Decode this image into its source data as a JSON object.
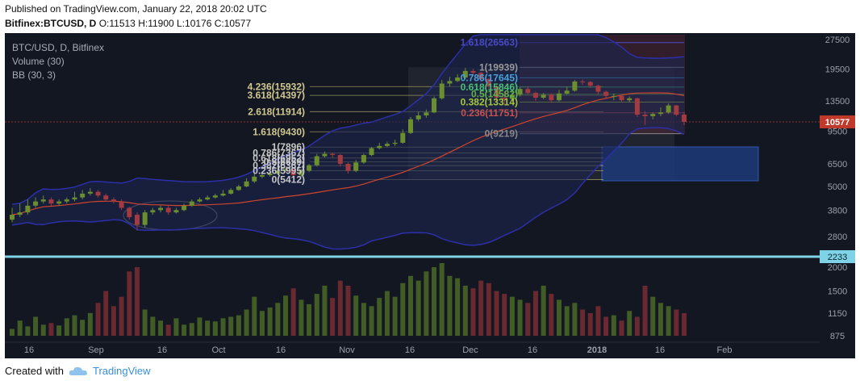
{
  "header": {
    "published": "Published on TradingView.com, January 22, 2018 20:02 UTC",
    "symbol": "Bitfinex:BTCUSD, D",
    "ohlc_prefix_o": "O:",
    "o": "11513",
    "ohlc_prefix_h": "H:",
    "h": "11900",
    "ohlc_prefix_l": "L:",
    "l": "10176",
    "ohlc_prefix_c": "C:",
    "c": "10577"
  },
  "legend": {
    "line1": "BTC/USD, D, Bitfinex",
    "line2": "Volume (30)",
    "line3": "BB (30, 3)"
  },
  "footer": {
    "created_with": "Created with",
    "brand": "TradingView"
  },
  "colors": {
    "background": "#131722",
    "up": "#6b8e2f",
    "down": "#a33a3f",
    "bb_band": "#2d2fa8",
    "ma": "#d0452c",
    "hline": "#7fd3e6",
    "last_price": "#c0392b"
  },
  "chart_data": {
    "type": "candlestick",
    "scale": "log",
    "price_axis_ticks": [
      "27500",
      "19500",
      "13500",
      "9500",
      "6500",
      "5000",
      "3800",
      "2800",
      "2000",
      "1500",
      "1150",
      "875"
    ],
    "time_axis_ticks": [
      "16",
      "Sep",
      "16",
      "Oct",
      "16",
      "Nov",
      "16",
      "Dec",
      "16",
      "2018",
      "16",
      "Feb"
    ],
    "last_price": "10577",
    "horizontal_line": "2233",
    "fib_extension_left": [
      "4.236(15932)",
      "3.618(14397)",
      "2.618(11914)",
      "1.618(9430)",
      "1(7896)",
      "0.786(7367)",
      "0.618(6952)",
      "0.5(6659)",
      "0.382(6367)",
      "0.236(5995)",
      "0(5412)"
    ],
    "fib_retracement_right": [
      "1.618(26563)",
      "1(19939)",
      "0.786(17645)",
      "0.618(15846)",
      "0.5(14582)",
      "0.382(13314)",
      "0.236(11751)",
      "0(9219)"
    ],
    "candles_approx": [
      [
        3600,
        3400,
        3900,
        3300
      ],
      [
        3700,
        3600,
        4100,
        3500
      ],
      [
        4000,
        3700,
        4300,
        3600
      ],
      [
        4200,
        4000,
        4400,
        3900
      ],
      [
        4300,
        4200,
        4500,
        4100
      ],
      [
        4100,
        4300,
        4400,
        4000
      ],
      [
        4200,
        4100,
        4300,
        4000
      ],
      [
        4300,
        4200,
        4400,
        4100
      ],
      [
        4400,
        4300,
        4700,
        4200
      ],
      [
        4600,
        4400,
        4800,
        4300
      ],
      [
        4700,
        4600,
        4900,
        4500
      ],
      [
        4500,
        4700,
        4800,
        4400
      ],
      [
        4300,
        4500,
        4600,
        4200
      ],
      [
        4200,
        4300,
        4400,
        4100
      ],
      [
        3900,
        4200,
        4300,
        3800
      ],
      [
        3500,
        3900,
        3950,
        3400
      ],
      [
        3200,
        3600,
        3700,
        3000
      ],
      [
        3700,
        3200,
        3800,
        3100
      ],
      [
        3800,
        3700,
        3900,
        3600
      ],
      [
        3900,
        3800,
        4000,
        3700
      ],
      [
        3700,
        3900,
        4000,
        3600
      ],
      [
        3800,
        3700,
        3900,
        3650
      ],
      [
        4000,
        3800,
        4100,
        3750
      ],
      [
        4200,
        4000,
        4300,
        3950
      ],
      [
        4300,
        4200,
        4400,
        4150
      ],
      [
        4400,
        4300,
        4500,
        4250
      ],
      [
        4500,
        4400,
        4600,
        4350
      ],
      [
        4600,
        4500,
        4800,
        4450
      ],
      [
        4800,
        4600,
        4900,
        4550
      ],
      [
        5000,
        4800,
        5100,
        4750
      ],
      [
        5300,
        5000,
        5500,
        4950
      ],
      [
        5600,
        5300,
        5800,
        5200
      ],
      [
        5700,
        5600,
        5900,
        5500
      ],
      [
        5800,
        5700,
        6000,
        5600
      ],
      [
        6000,
        5800,
        6200,
        5700
      ],
      [
        6100,
        6000,
        6200,
        5900
      ],
      [
        5700,
        6100,
        6200,
        5600
      ],
      [
        6000,
        5700,
        6100,
        5600
      ],
      [
        6400,
        6000,
        6500,
        5900
      ],
      [
        7100,
        6400,
        7300,
        6300
      ],
      [
        7300,
        7100,
        7500,
        7000
      ],
      [
        7200,
        7300,
        7400,
        7000
      ],
      [
        6500,
        7200,
        7300,
        6300
      ],
      [
        6000,
        6500,
        6600,
        5800
      ],
      [
        6600,
        6000,
        6800,
        5900
      ],
      [
        7200,
        6600,
        7300,
        6500
      ],
      [
        7800,
        7200,
        7900,
        7100
      ],
      [
        8000,
        7800,
        8300,
        7700
      ],
      [
        8200,
        8000,
        8400,
        7900
      ],
      [
        8300,
        8200,
        8600,
        8000
      ],
      [
        9300,
        8300,
        9700,
        8200
      ],
      [
        10900,
        9300,
        11200,
        9200
      ],
      [
        11400,
        10900,
        11900,
        10700
      ],
      [
        11800,
        11400,
        12200,
        11100
      ],
      [
        13900,
        11800,
        14200,
        11700
      ],
      [
        16500,
        13900,
        17200,
        13700
      ],
      [
        17000,
        16500,
        17800,
        15900
      ],
      [
        17700,
        17000,
        18400,
        16800
      ],
      [
        19100,
        17700,
        19800,
        17400
      ],
      [
        18700,
        19100,
        19600,
        18000
      ],
      [
        17400,
        18700,
        18900,
        16800
      ],
      [
        16000,
        17400,
        17600,
        15500
      ],
      [
        14000,
        16000,
        16200,
        13500
      ],
      [
        13800,
        14000,
        15000,
        12800
      ],
      [
        14500,
        13800,
        15200,
        13500
      ],
      [
        15500,
        14500,
        15800,
        14200
      ],
      [
        14800,
        15500,
        15900,
        14500
      ],
      [
        14000,
        14800,
        15000,
        13500
      ],
      [
        14500,
        14000,
        14800,
        13800
      ],
      [
        13600,
        14500,
        14700,
        13200
      ],
      [
        14700,
        13600,
        15300,
        13400
      ],
      [
        15200,
        14700,
        15900,
        14500
      ],
      [
        16900,
        15200,
        17200,
        15000
      ],
      [
        16800,
        16900,
        17300,
        16300
      ],
      [
        16100,
        16800,
        17000,
        15700
      ],
      [
        15000,
        16100,
        16300,
        14500
      ],
      [
        14300,
        15000,
        15200,
        14000
      ],
      [
        14300,
        14300,
        14700,
        13600
      ],
      [
        13600,
        14300,
        14500,
        13400
      ],
      [
        13900,
        13600,
        14200,
        13300
      ],
      [
        11500,
        13900,
        14000,
        11200
      ],
      [
        11300,
        11500,
        12000,
        10200
      ],
      [
        11600,
        11300,
        11800,
        10900
      ],
      [
        11800,
        11600,
        12500,
        11300
      ],
      [
        12800,
        11800,
        13100,
        11600
      ],
      [
        11500,
        12800,
        12900,
        11300
      ],
      [
        10577,
        11513,
        11900,
        10176
      ]
    ],
    "volume_approx": [
      950,
      1050,
      980,
      1100,
      1000,
      1020,
      990,
      1080,
      1120,
      1060,
      1150,
      1300,
      1500,
      1250,
      1400,
      1900,
      2000,
      1200,
      1100,
      1050,
      1000,
      1080,
      1000,
      1020,
      1090,
      1050,
      1040,
      1080,
      1100,
      1120,
      1200,
      1400,
      1180,
      1230,
      1300,
      1420,
      1550,
      1350,
      1280,
      1450,
      1600,
      1380,
      1700,
      1600,
      1420,
      1300,
      1250,
      1380,
      1500,
      1400,
      1650,
      1800,
      1700,
      1900,
      2000,
      2100,
      1800,
      1750,
      1600,
      1550,
      1700,
      1650,
      1500,
      1450,
      1400,
      1350,
      1300,
      1500,
      1600,
      1450,
      1350,
      1250,
      1300,
      1200,
      1150,
      1250,
      1100,
      1120,
      1050,
      1180,
      1100,
      1600,
      1400,
      1300,
      1250,
      1200,
      1150
    ]
  }
}
